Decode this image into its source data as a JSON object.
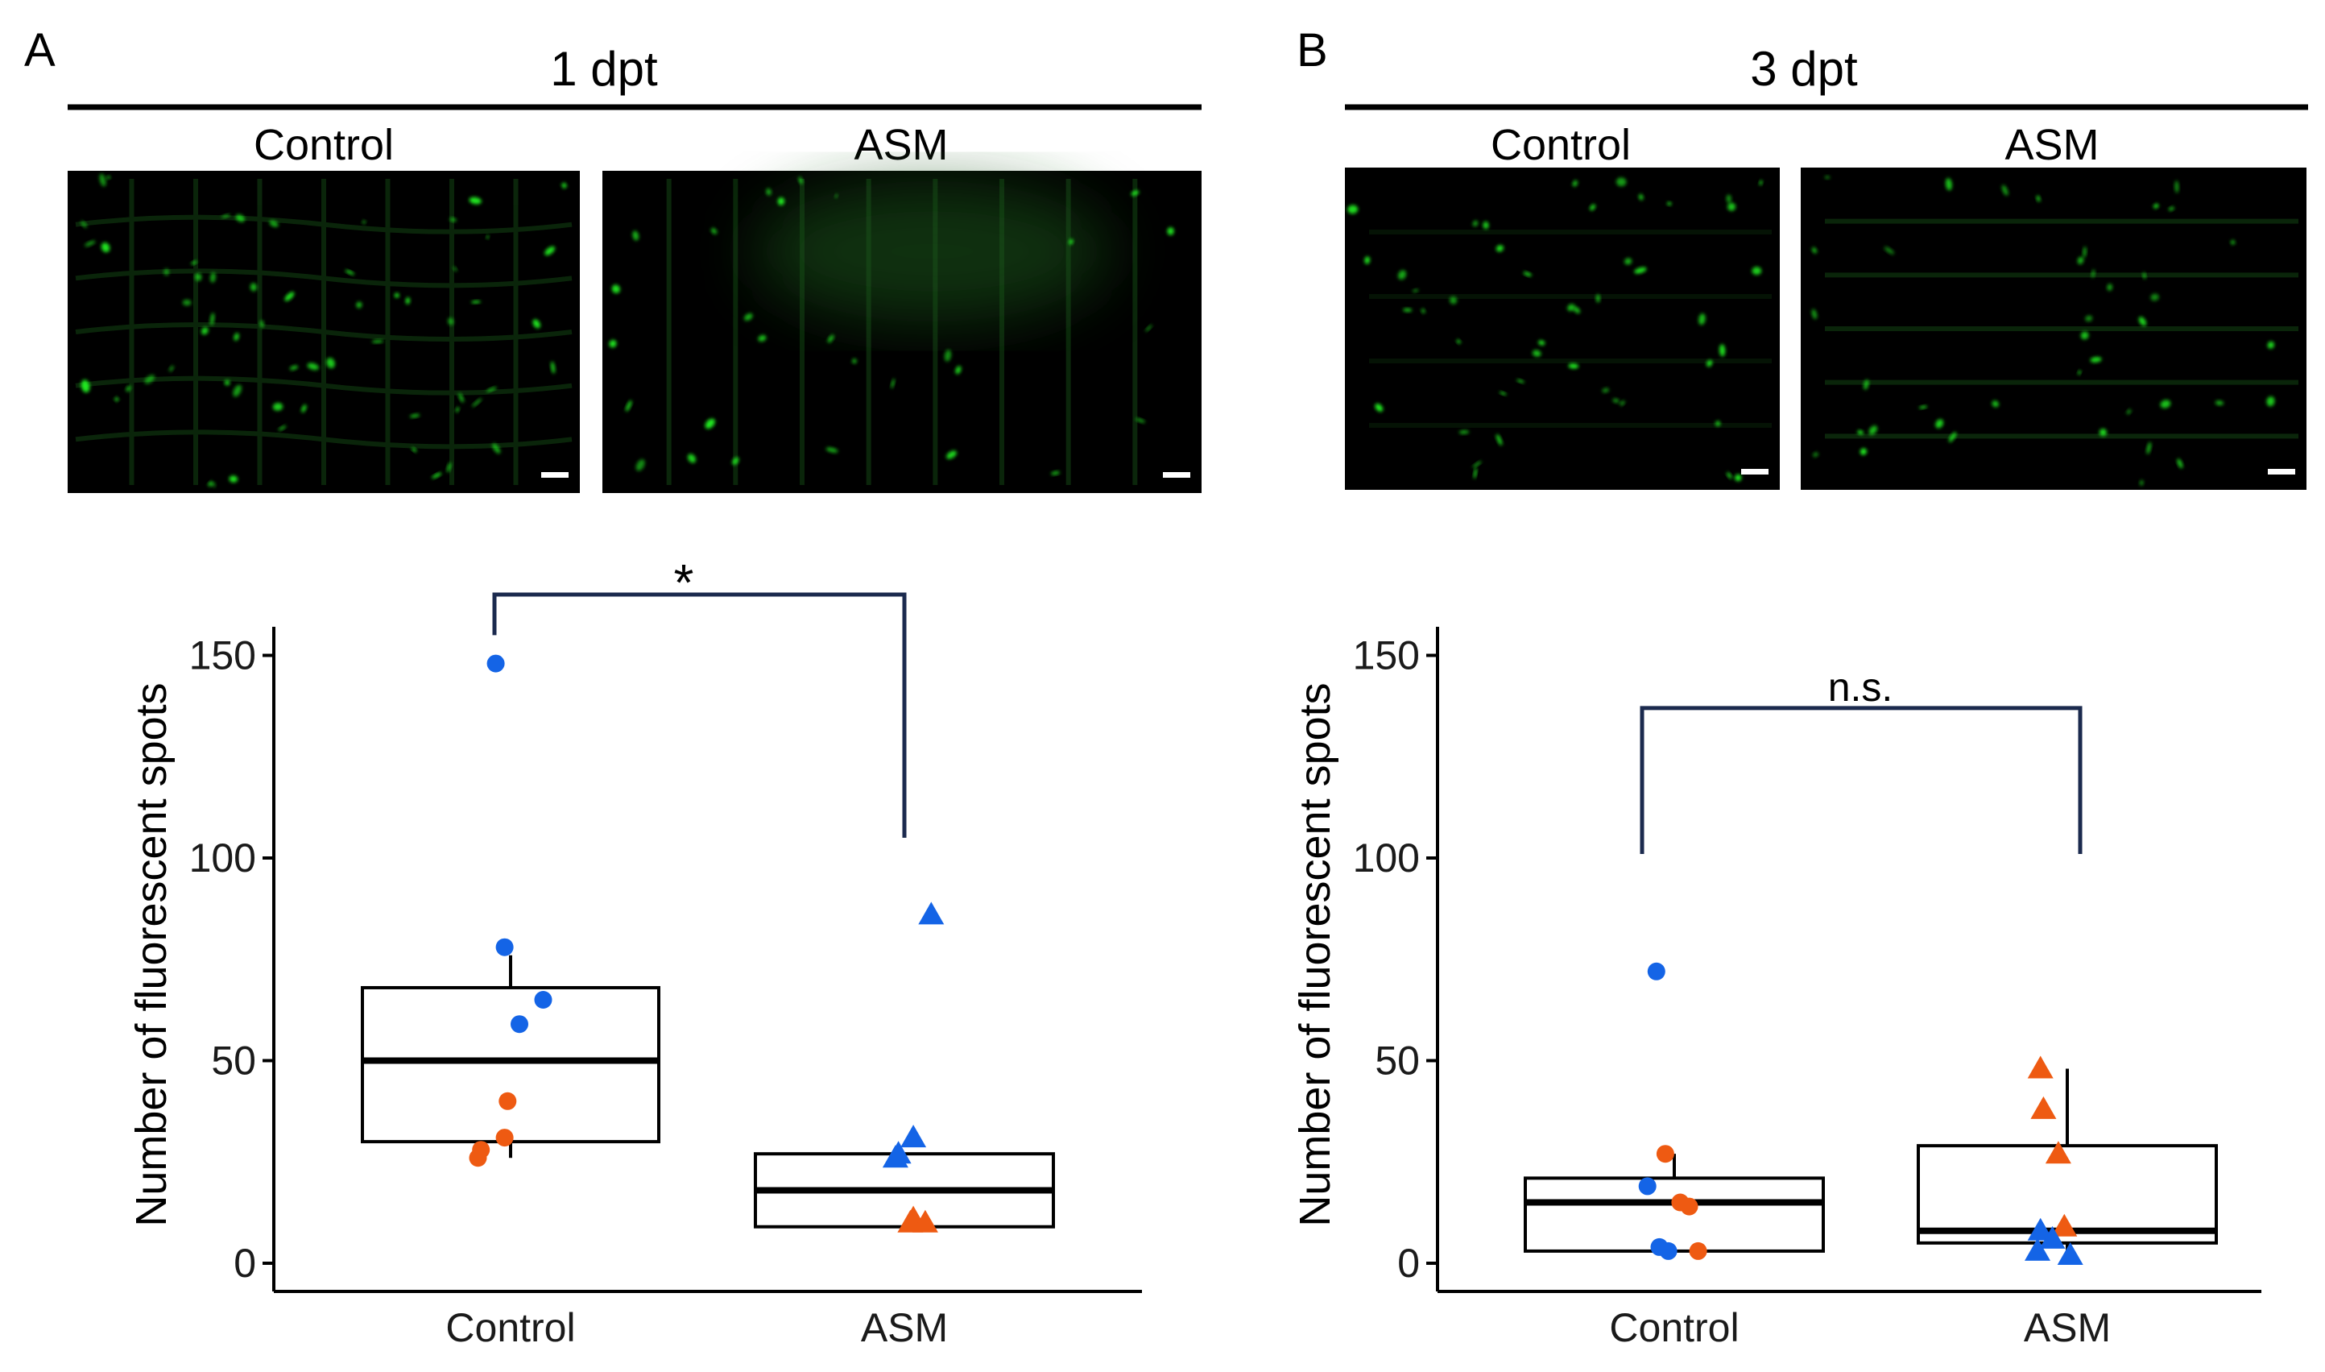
{
  "panels": [
    {
      "letter": "A",
      "title": "1 dpt",
      "micrographs": [
        {
          "label": "Control",
          "seed": 11,
          "density": 60,
          "grid": "mesh",
          "haze": false
        },
        {
          "label": "ASM",
          "seed": 29,
          "density": 28,
          "grid": "vertical",
          "haze": true
        }
      ],
      "significance": "*"
    },
    {
      "letter": "B",
      "title": "3 dpt",
      "micrographs": [
        {
          "label": "Control",
          "seed": 47,
          "density": 45,
          "grid": "faint",
          "haze": false
        },
        {
          "label": "ASM",
          "seed": 83,
          "density": 40,
          "grid": "horizontal",
          "haze": false
        }
      ],
      "significance": "n.s."
    }
  ],
  "colors": {
    "blue": "#1464e6",
    "orange": "#ee5a12",
    "bracket": "#1b2a4e",
    "box": "#000000",
    "fluorescence": "#22f022",
    "background_image": "#000000"
  },
  "chart_data": [
    {
      "type": "box",
      "panel": "A",
      "ylabel": "Number of fluorescent spots",
      "categories": [
        "Control",
        "ASM"
      ],
      "ylim": [
        0,
        158
      ],
      "yticks": [
        0,
        50,
        100,
        150
      ],
      "boxes": [
        {
          "category": "Control",
          "q1": 30,
          "median": 50,
          "q3": 68,
          "whisker_low": 26,
          "whisker_high": 76
        },
        {
          "category": "ASM",
          "q1": 9,
          "median": 18,
          "q3": 27,
          "whisker_low": 9,
          "whisker_high": 27
        }
      ],
      "points": [
        {
          "category": "Control",
          "shape": "circle",
          "color": "blue",
          "offset": -0.05,
          "y": 148
        },
        {
          "category": "Control",
          "shape": "circle",
          "color": "blue",
          "offset": -0.02,
          "y": 78
        },
        {
          "category": "Control",
          "shape": "circle",
          "color": "blue",
          "offset": 0.11,
          "y": 65
        },
        {
          "category": "Control",
          "shape": "circle",
          "color": "blue",
          "offset": 0.03,
          "y": 59
        },
        {
          "category": "Control",
          "shape": "circle",
          "color": "orange",
          "offset": -0.01,
          "y": 40
        },
        {
          "category": "Control",
          "shape": "circle",
          "color": "orange",
          "offset": -0.02,
          "y": 31
        },
        {
          "category": "Control",
          "shape": "circle",
          "color": "orange",
          "offset": -0.1,
          "y": 28
        },
        {
          "category": "Control",
          "shape": "circle",
          "color": "orange",
          "offset": -0.11,
          "y": 26
        },
        {
          "category": "ASM",
          "shape": "triangle",
          "color": "blue",
          "offset": 0.09,
          "y": 86
        },
        {
          "category": "ASM",
          "shape": "triangle",
          "color": "blue",
          "offset": 0.03,
          "y": 31
        },
        {
          "category": "ASM",
          "shape": "triangle",
          "color": "blue",
          "offset": -0.02,
          "y": 27
        },
        {
          "category": "ASM",
          "shape": "triangle",
          "color": "blue",
          "offset": -0.03,
          "y": 26
        },
        {
          "category": "ASM",
          "shape": "triangle",
          "color": "orange",
          "offset": 0.03,
          "y": 11
        },
        {
          "category": "ASM",
          "shape": "triangle",
          "color": "orange",
          "offset": 0.07,
          "y": 10
        },
        {
          "category": "ASM",
          "shape": "triangle",
          "color": "orange",
          "offset": 0.02,
          "y": 10
        }
      ],
      "bracket": {
        "label": "*",
        "y_top": 165,
        "y_left_end": 155,
        "y_right_end": 105
      }
    },
    {
      "type": "box",
      "panel": "B",
      "ylabel": "Number of fluorescent spots",
      "categories": [
        "Control",
        "ASM"
      ],
      "ylim": [
        0,
        158
      ],
      "yticks": [
        0,
        50,
        100,
        150
      ],
      "boxes": [
        {
          "category": "Control",
          "q1": 3,
          "median": 15,
          "q3": 21,
          "whisker_low": 3,
          "whisker_high": 27
        },
        {
          "category": "ASM",
          "q1": 5,
          "median": 8,
          "q3": 29,
          "whisker_low": 2,
          "whisker_high": 48
        }
      ],
      "points": [
        {
          "category": "Control",
          "shape": "circle",
          "color": "blue",
          "offset": -0.06,
          "y": 72
        },
        {
          "category": "Control",
          "shape": "circle",
          "color": "orange",
          "offset": -0.03,
          "y": 27
        },
        {
          "category": "Control",
          "shape": "circle",
          "color": "blue",
          "offset": -0.09,
          "y": 19
        },
        {
          "category": "Control",
          "shape": "circle",
          "color": "orange",
          "offset": 0.02,
          "y": 15
        },
        {
          "category": "Control",
          "shape": "circle",
          "color": "orange",
          "offset": 0.05,
          "y": 14
        },
        {
          "category": "Control",
          "shape": "circle",
          "color": "blue",
          "offset": -0.05,
          "y": 4
        },
        {
          "category": "Control",
          "shape": "circle",
          "color": "blue",
          "offset": -0.02,
          "y": 3
        },
        {
          "category": "Control",
          "shape": "circle",
          "color": "orange",
          "offset": 0.08,
          "y": 3
        },
        {
          "category": "ASM",
          "shape": "triangle",
          "color": "orange",
          "offset": -0.09,
          "y": 48
        },
        {
          "category": "ASM",
          "shape": "triangle",
          "color": "orange",
          "offset": -0.08,
          "y": 38
        },
        {
          "category": "ASM",
          "shape": "triangle",
          "color": "orange",
          "offset": -0.03,
          "y": 27
        },
        {
          "category": "ASM",
          "shape": "triangle",
          "color": "orange",
          "offset": -0.01,
          "y": 9
        },
        {
          "category": "ASM",
          "shape": "triangle",
          "color": "blue",
          "offset": -0.09,
          "y": 8
        },
        {
          "category": "ASM",
          "shape": "triangle",
          "color": "blue",
          "offset": -0.05,
          "y": 6
        },
        {
          "category": "ASM",
          "shape": "triangle",
          "color": "blue",
          "offset": -0.1,
          "y": 3
        },
        {
          "category": "ASM",
          "shape": "triangle",
          "color": "blue",
          "offset": 0.01,
          "y": 2
        }
      ],
      "bracket": {
        "label": "n.s.",
        "y_top": 137,
        "y_left_end": 101,
        "y_right_end": 101
      }
    }
  ]
}
